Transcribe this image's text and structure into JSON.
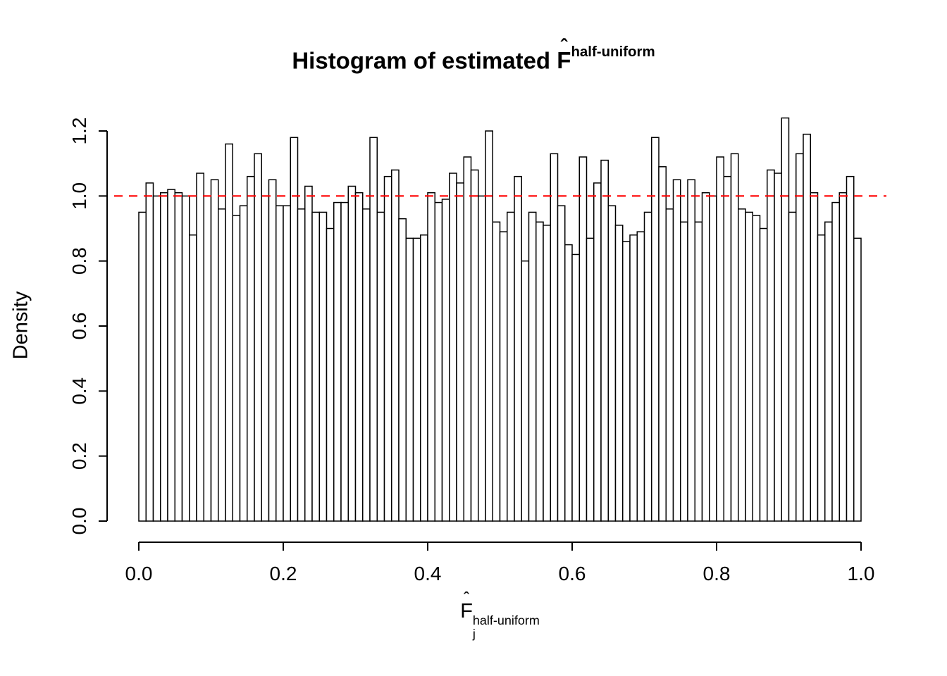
{
  "chart_data": {
    "type": "bar",
    "title": {
      "prefix": "Histogram of estimated ",
      "symbol": "F",
      "hat": "ˆ",
      "sup": "half-uniform"
    },
    "xlabel": {
      "symbol": "F",
      "hat": "ˆ",
      "sub": "j",
      "sup": "half-uniform"
    },
    "ylabel": "Density",
    "xlim": [
      0,
      1
    ],
    "ylim": [
      0,
      1.2
    ],
    "x_ticks": [
      0,
      0.2,
      0.4,
      0.6,
      0.8,
      1.0
    ],
    "x_tick_labels": [
      "0.0",
      "0.2",
      "0.4",
      "0.6",
      "0.8",
      "1.0"
    ],
    "y_ticks": [
      0,
      0.2,
      0.4,
      0.6,
      0.8,
      1.0,
      1.2
    ],
    "y_tick_labels": [
      "0.0",
      "0.2",
      "0.4",
      "0.6",
      "0.8",
      "1.0",
      "1.2"
    ],
    "bin_width": 0.01,
    "bar_fill": "#ffffff",
    "bar_stroke": "#000000",
    "grid": false,
    "legend": false,
    "reference_line": {
      "y": 1.0,
      "color": "#ff0000",
      "style": "dashed"
    },
    "values": [
      0.95,
      1.04,
      1.0,
      1.01,
      1.02,
      1.01,
      1.0,
      0.88,
      1.07,
      1.0,
      1.05,
      0.96,
      1.16,
      0.94,
      0.97,
      1.06,
      1.13,
      1.0,
      1.05,
      0.97,
      0.97,
      1.18,
      0.96,
      1.03,
      0.95,
      0.95,
      0.9,
      0.98,
      0.98,
      1.03,
      1.01,
      0.96,
      1.18,
      0.95,
      1.06,
      1.08,
      0.93,
      0.87,
      0.87,
      0.88,
      1.01,
      0.98,
      0.99,
      1.07,
      1.04,
      1.12,
      1.08,
      1.0,
      1.2,
      0.92,
      0.89,
      0.95,
      1.06,
      0.8,
      0.95,
      0.92,
      0.91,
      1.13,
      0.97,
      0.85,
      0.82,
      1.12,
      0.87,
      1.04,
      1.11,
      0.97,
      0.91,
      0.86,
      0.88,
      0.89,
      0.95,
      1.18,
      1.09,
      0.96,
      1.05,
      0.92,
      1.05,
      0.92,
      1.01,
      1.0,
      1.12,
      1.06,
      1.13,
      0.96,
      0.95,
      0.94,
      0.9,
      1.08,
      1.07,
      1.24,
      0.95,
      1.13,
      1.19,
      1.01,
      0.88,
      0.92,
      0.98,
      1.01,
      1.06,
      0.87
    ]
  }
}
